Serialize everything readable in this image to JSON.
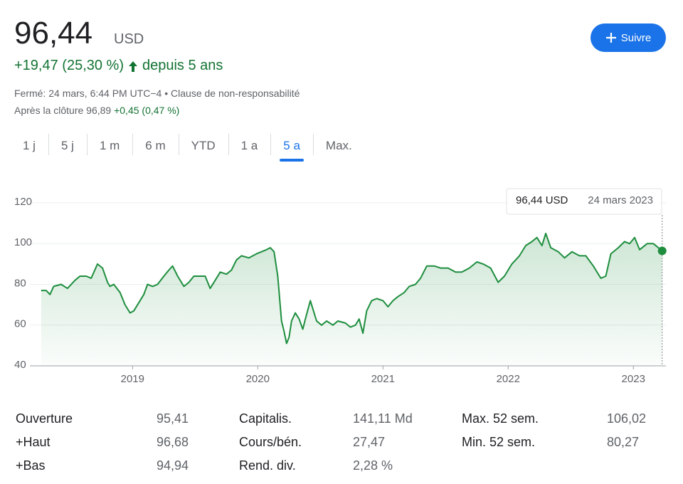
{
  "header": {
    "price": "96,44",
    "currency": "USD",
    "change": "+19,47 (25,30 %)",
    "period": "depuis 5 ans",
    "follow_button": "Suivre",
    "status": "Fermé: 24 mars, 6:44 PM UTC−4 •",
    "disclaimer": "Clause de non-responsabilité",
    "after_hours": "Après la clôture 96,89",
    "after_hours_change": "+0,45 (0,47 %)"
  },
  "tabs": {
    "items": [
      "1 j",
      "5 j",
      "1 m",
      "6 m",
      "YTD",
      "1 a",
      "5 a",
      "Max."
    ],
    "active": 6
  },
  "chart_data": {
    "type": "line",
    "color": "#1e8e3e",
    "grid": true,
    "x": [
      2018.27,
      2018.31,
      2018.34,
      2018.37,
      2018.43,
      2018.48,
      2018.54,
      2018.58,
      2018.63,
      2018.67,
      2018.72,
      2018.76,
      2018.8,
      2018.82,
      2018.85,
      2018.9,
      2018.94,
      2018.98,
      2019.01,
      2019.05,
      2019.09,
      2019.12,
      2019.16,
      2019.2,
      2019.25,
      2019.29,
      2019.32,
      2019.36,
      2019.41,
      2019.45,
      2019.49,
      2019.53,
      2019.58,
      2019.62,
      2019.66,
      2019.7,
      2019.75,
      2019.79,
      2019.83,
      2019.87,
      2019.93,
      2019.99,
      2020.03,
      2020.07,
      2020.1,
      2020.13,
      2020.16,
      2020.19,
      2020.21,
      2020.23,
      2020.25,
      2020.27,
      2020.3,
      2020.33,
      2020.36,
      2020.38,
      2020.42,
      2020.47,
      2020.51,
      2020.55,
      2020.6,
      2020.64,
      2020.7,
      2020.74,
      2020.78,
      2020.81,
      2020.84,
      2020.87,
      2020.91,
      2020.95,
      2021.0,
      2021.04,
      2021.08,
      2021.12,
      2021.17,
      2021.21,
      2021.26,
      2021.3,
      2021.35,
      2021.41,
      2021.46,
      2021.52,
      2021.58,
      2021.63,
      2021.69,
      2021.75,
      2021.8,
      2021.86,
      2021.92,
      2021.97,
      2022.03,
      2022.09,
      2022.14,
      2022.19,
      2022.23,
      2022.27,
      2022.3,
      2022.34,
      2022.4,
      2022.45,
      2022.51,
      2022.57,
      2022.62,
      2022.68,
      2022.74,
      2022.78,
      2022.82,
      2022.88,
      2022.93,
      2022.97,
      2023.01,
      2023.05,
      2023.11,
      2023.16,
      2023.23
    ],
    "values": [
      77,
      77,
      75,
      79,
      80,
      78,
      82,
      84,
      84,
      83,
      90,
      88,
      81,
      79,
      80,
      76,
      70,
      66,
      67,
      71,
      75,
      80,
      79,
      80,
      84,
      87,
      89,
      84,
      79,
      81,
      84,
      84,
      84,
      78,
      82,
      86,
      85,
      87,
      92,
      94,
      93,
      95,
      96,
      97,
      98,
      96,
      84,
      62,
      57,
      51,
      54,
      62,
      66,
      63,
      58,
      63,
      72,
      62,
      60,
      62,
      60,
      62,
      61,
      59,
      60,
      63,
      56,
      67,
      72,
      73,
      72,
      69,
      72,
      74,
      76,
      79,
      80,
      83,
      89,
      89,
      88,
      88,
      86,
      86,
      88,
      91,
      90,
      88,
      81,
      84,
      90,
      94,
      99,
      101,
      103,
      99,
      105,
      98,
      96,
      93,
      96,
      94,
      94,
      89,
      83,
      84,
      95,
      98,
      101,
      100,
      103,
      97,
      100,
      100,
      96.44
    ],
    "xlim": [
      2018.18,
      2023.26
    ],
    "ylim": [
      40,
      120
    ],
    "xticks": [
      2019,
      2020,
      2021,
      2022,
      2023
    ],
    "yticks": [
      40,
      60,
      80,
      100,
      120
    ],
    "tooltip": {
      "value": "96,44 USD",
      "date": "24 mars 2023"
    }
  },
  "stats": {
    "rows": [
      [
        [
          "Ouverture",
          "95,41"
        ],
        [
          "Capitalis.",
          "141,11 Md"
        ],
        [
          "Max. 52 sem.",
          "106,02"
        ]
      ],
      [
        [
          "+Haut",
          "96,68"
        ],
        [
          "Cours/bén.",
          "27,47"
        ],
        [
          "Min. 52 sem.",
          "80,27"
        ]
      ],
      [
        [
          "+Bas",
          "94,94"
        ],
        [
          "Rend. div.",
          "2,28 %"
        ]
      ]
    ]
  }
}
